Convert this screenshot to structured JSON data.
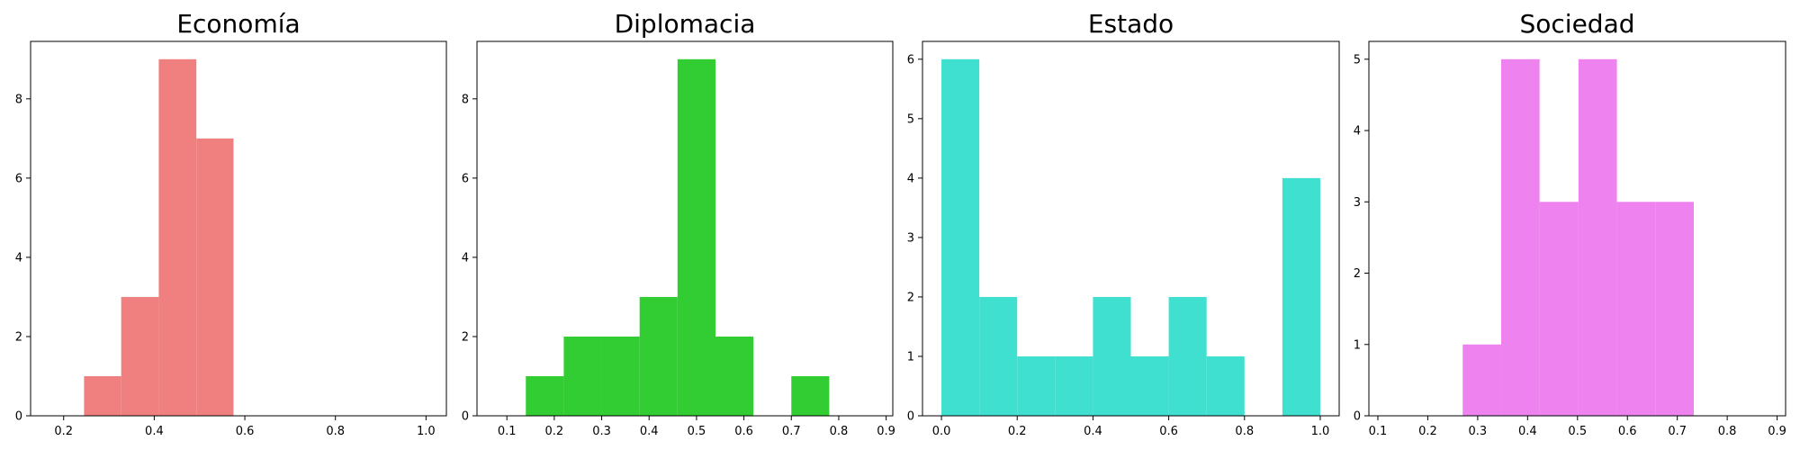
{
  "chart_data": [
    {
      "type": "histogram",
      "title": "Economía",
      "color": "#f08080",
      "xlim": [
        0.127,
        1.045
      ],
      "ylim": [
        0,
        9.45
      ],
      "xticks": [
        0.2,
        0.4,
        0.6,
        0.8,
        1.0
      ],
      "xtick_labels": [
        "0.2",
        "0.4",
        "0.6",
        "0.8",
        "1.0"
      ],
      "yticks": [
        0,
        2,
        4,
        6,
        8
      ],
      "ytick_labels": [
        "0",
        "2",
        "4",
        "6",
        "8"
      ],
      "bins": [
        {
          "x0": 0.245,
          "x1": 0.327,
          "count": 1
        },
        {
          "x0": 0.327,
          "x1": 0.41,
          "count": 3
        },
        {
          "x0": 0.41,
          "x1": 0.493,
          "count": 9
        },
        {
          "x0": 0.493,
          "x1": 0.575,
          "count": 7
        }
      ]
    },
    {
      "type": "histogram",
      "title": "Diplomacia",
      "color": "#32cd32",
      "xlim": [
        0.037,
        0.914
      ],
      "ylim": [
        0,
        9.45
      ],
      "xticks": [
        0.1,
        0.2,
        0.3,
        0.4,
        0.5,
        0.6,
        0.7,
        0.8,
        0.9
      ],
      "xtick_labels": [
        "0.1",
        "0.2",
        "0.3",
        "0.4",
        "0.5",
        "0.6",
        "0.7",
        "0.8",
        "0.9"
      ],
      "yticks": [
        0,
        2,
        4,
        6,
        8
      ],
      "ytick_labels": [
        "0",
        "2",
        "4",
        "6",
        "8"
      ],
      "bins": [
        {
          "x0": 0.14,
          "x1": 0.22,
          "count": 1
        },
        {
          "x0": 0.22,
          "x1": 0.3,
          "count": 2
        },
        {
          "x0": 0.3,
          "x1": 0.38,
          "count": 2
        },
        {
          "x0": 0.38,
          "x1": 0.46,
          "count": 3
        },
        {
          "x0": 0.46,
          "x1": 0.54,
          "count": 9
        },
        {
          "x0": 0.54,
          "x1": 0.62,
          "count": 2
        },
        {
          "x0": 0.62,
          "x1": 0.7,
          "count": 0
        },
        {
          "x0": 0.7,
          "x1": 0.78,
          "count": 1
        }
      ]
    },
    {
      "type": "histogram",
      "title": "Estado",
      "color": "#40e0d0",
      "xlim": [
        -0.05,
        1.05
      ],
      "ylim": [
        0,
        6.3
      ],
      "xticks": [
        0.0,
        0.2,
        0.4,
        0.6,
        0.8,
        1.0
      ],
      "xtick_labels": [
        "0.0",
        "0.2",
        "0.4",
        "0.6",
        "0.8",
        "1.0"
      ],
      "yticks": [
        0,
        1,
        2,
        3,
        4,
        5,
        6
      ],
      "ytick_labels": [
        "0",
        "1",
        "2",
        "3",
        "4",
        "5",
        "6"
      ],
      "bins": [
        {
          "x0": 0.0,
          "x1": 0.1,
          "count": 6
        },
        {
          "x0": 0.1,
          "x1": 0.2,
          "count": 2
        },
        {
          "x0": 0.2,
          "x1": 0.3,
          "count": 1
        },
        {
          "x0": 0.3,
          "x1": 0.4,
          "count": 1
        },
        {
          "x0": 0.4,
          "x1": 0.5,
          "count": 2
        },
        {
          "x0": 0.5,
          "x1": 0.6,
          "count": 1
        },
        {
          "x0": 0.6,
          "x1": 0.7,
          "count": 2
        },
        {
          "x0": 0.7,
          "x1": 0.8,
          "count": 1
        },
        {
          "x0": 0.8,
          "x1": 0.9,
          "count": 0
        },
        {
          "x0": 0.9,
          "x1": 1.0,
          "count": 4
        }
      ]
    },
    {
      "type": "histogram",
      "title": "Sociedad",
      "color": "#ee82ee",
      "xlim": [
        0.082,
        0.917
      ],
      "ylim": [
        0,
        5.25
      ],
      "xticks": [
        0.1,
        0.2,
        0.3,
        0.4,
        0.5,
        0.6,
        0.7,
        0.8,
        0.9
      ],
      "xtick_labels": [
        "0.1",
        "0.2",
        "0.3",
        "0.4",
        "0.5",
        "0.6",
        "0.7",
        "0.8",
        "0.9"
      ],
      "yticks": [
        0,
        1,
        2,
        3,
        4,
        5
      ],
      "ytick_labels": [
        "0",
        "1",
        "2",
        "3",
        "4",
        "5"
      ],
      "bins": [
        {
          "x0": 0.27,
          "x1": 0.347,
          "count": 1
        },
        {
          "x0": 0.347,
          "x1": 0.424,
          "count": 5
        },
        {
          "x0": 0.424,
          "x1": 0.502,
          "count": 3
        },
        {
          "x0": 0.502,
          "x1": 0.579,
          "count": 5
        },
        {
          "x0": 0.579,
          "x1": 0.656,
          "count": 3
        },
        {
          "x0": 0.656,
          "x1": 0.733,
          "count": 3
        }
      ]
    }
  ]
}
